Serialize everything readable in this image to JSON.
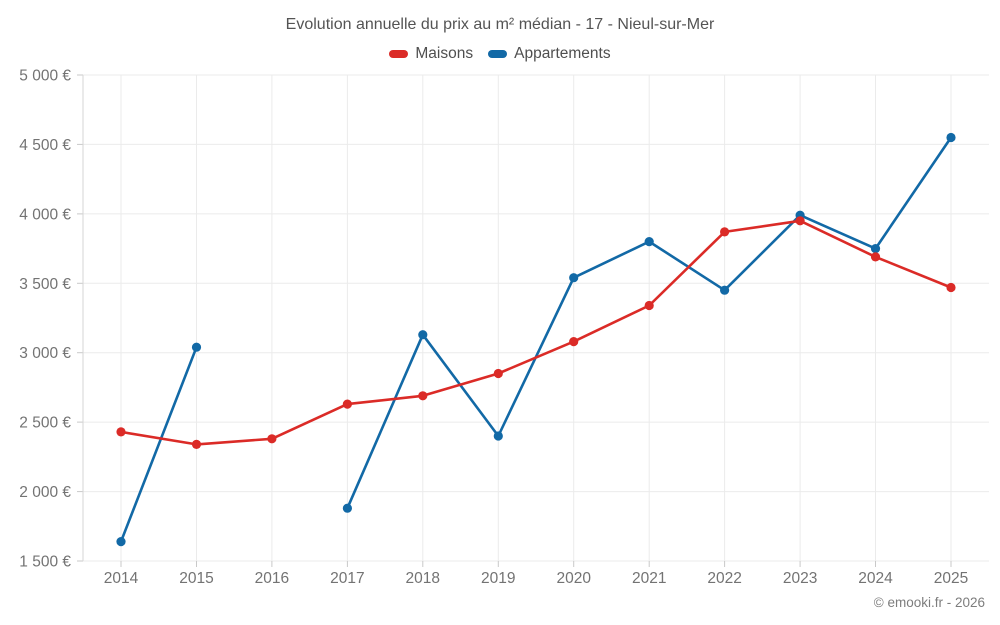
{
  "chart_data": {
    "type": "line",
    "title": "Evolution annuelle du prix au m² médian - 17 - Nieul-sur-Mer",
    "xlabel": "",
    "ylabel": "",
    "categories": [
      "2014",
      "2015",
      "2016",
      "2017",
      "2018",
      "2019",
      "2020",
      "2021",
      "2022",
      "2023",
      "2024",
      "2025"
    ],
    "series": [
      {
        "name": "Maisons",
        "color": "#db2b27",
        "values": [
          2430,
          2340,
          2380,
          2630,
          2690,
          2850,
          3080,
          3340,
          3870,
          3950,
          3690,
          3470
        ]
      },
      {
        "name": "Appartements",
        "color": "#1269a6",
        "values": [
          1640,
          3040,
          null,
          1880,
          3130,
          2400,
          3540,
          3800,
          3450,
          3990,
          3750,
          4550
        ]
      }
    ],
    "ylim": [
      1500,
      5000
    ],
    "ytick_values": [
      1500,
      2000,
      2500,
      3000,
      3500,
      4000,
      4500,
      5000
    ],
    "ytick_labels": [
      "1 500 €",
      "2 000 €",
      "2 500 €",
      "3 000 €",
      "3 500 €",
      "4 000 €",
      "4 500 €",
      "5 000 €"
    ],
    "grid": true,
    "legend_position": "top",
    "grid_color": "#ebebeb",
    "tick_color": "#c9c9c9",
    "axis_line_color": "#d6d6d6",
    "axis_label_color": "#737373"
  },
  "footer": {
    "copyright": "© emooki.fr - 2026"
  }
}
